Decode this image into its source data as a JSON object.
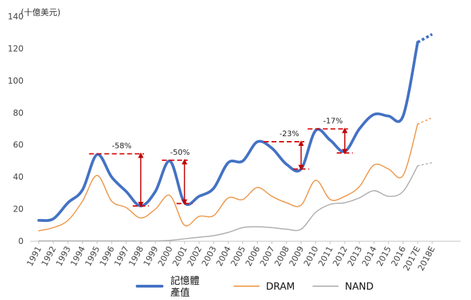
{
  "chart_data": {
    "type": "line",
    "unit_label": "(十億美元)",
    "categories": [
      "1991",
      "1992",
      "1993",
      "1994",
      "1995",
      "1996",
      "1997",
      "1998",
      "1999",
      "2000",
      "2001",
      "2002",
      "2003",
      "2004",
      "2005",
      "2006",
      "2007",
      "2008",
      "2009",
      "2010",
      "2011",
      "2012",
      "2013",
      "2014",
      "2015",
      "2016",
      "2017E",
      "2018E"
    ],
    "ylim": [
      0,
      140
    ],
    "yticks": [
      0,
      20,
      40,
      60,
      80,
      100,
      120,
      140
    ],
    "grid": false,
    "legend_position": "bottom",
    "series": [
      {
        "name": "記憶體產值",
        "legend_lines": [
          "記憶體",
          "產值"
        ],
        "color": "#4472c4",
        "values": [
          13,
          14,
          24,
          32,
          54,
          40,
          31,
          22,
          31,
          50,
          24,
          28,
          33,
          49,
          50,
          62,
          58,
          48,
          45,
          69,
          63,
          56,
          70,
          79,
          78,
          78,
          124,
          129
        ]
      },
      {
        "name": "DRAM",
        "color": "#ed9a4f",
        "values": [
          6.5,
          8.5,
          13,
          25,
          41,
          25,
          21,
          14.5,
          20,
          28.5,
          10,
          15.5,
          16,
          27,
          26,
          33.5,
          28,
          24,
          22.5,
          38,
          26,
          28,
          34,
          47.5,
          45,
          41,
          73,
          77
        ]
      },
      {
        "name": "NAND",
        "color": "#b0b0b0",
        "values": [
          0.2,
          0.2,
          0.2,
          0.2,
          0.2,
          0.2,
          0.2,
          0.2,
          0.2,
          0.5,
          1.5,
          2.5,
          3.5,
          5.5,
          8.5,
          9,
          8.5,
          7.5,
          7.5,
          18,
          23,
          24,
          27,
          31.5,
          28,
          31,
          47,
          49
        ]
      }
    ],
    "annotations": [
      {
        "label": "-58%",
        "from_year": "1995",
        "to_year": "1998",
        "high": 54.5,
        "low": 22
      },
      {
        "label": "-50%",
        "from_year": "2000",
        "to_year": "2001",
        "high": 50.5,
        "low": 23.5
      },
      {
        "label": "-23%",
        "from_year": "2007",
        "to_year": "2009",
        "high": 62,
        "low": 45
      },
      {
        "label": "-17%",
        "from_year": "2010",
        "to_year": "2012",
        "high": 70,
        "low": 55
      }
    ]
  }
}
